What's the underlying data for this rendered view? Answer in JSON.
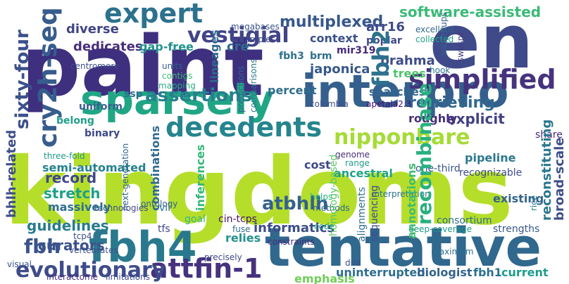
{
  "words": [
    {
      "text": "kingdoms",
      "color": "#b5de2b"
    },
    {
      "text": "paint",
      "color": "#3e2f7f"
    },
    {
      "text": "en",
      "color": "#3f4a8a"
    },
    {
      "text": "tentative",
      "color": "#30688e"
    },
    {
      "text": "interpro",
      "color": "#35608d"
    },
    {
      "text": "sparsely",
      "color": "#21a685"
    },
    {
      "text": "fbh4",
      "color": "#2a788e"
    },
    {
      "text": "decedents",
      "color": "#25858e"
    },
    {
      "text": "simplified",
      "color": "#46337e"
    },
    {
      "text": "expert",
      "color": "#2c728e"
    },
    {
      "text": "attfin-1",
      "color": "#46327e"
    },
    {
      "text": "cry2h-seq",
      "color": "#365d8d"
    },
    {
      "text": "nipponbare",
      "color": "#a5db36"
    },
    {
      "text": "vestigial",
      "color": "#414487"
    },
    {
      "text": "sixty-four",
      "color": "#3b518b"
    },
    {
      "text": "evolutionary",
      "color": "#3e4c8a"
    },
    {
      "text": "fbh2",
      "color": "#2d718e"
    },
    {
      "text": "recombinase",
      "color": "#2ab07f"
    },
    {
      "text": "assertions",
      "color": "#27808e"
    },
    {
      "text": "fbh",
      "color": "#3a538b"
    },
    {
      "text": "atbhlh",
      "color": "#34618d"
    },
    {
      "text": "multiplexed",
      "color": "#38588c"
    },
    {
      "text": "software-assisted",
      "color": "#3aba76"
    },
    {
      "text": "retrieving",
      "color": "#31688e"
    },
    {
      "text": "curators",
      "color": "#3b528b"
    },
    {
      "text": "guidelines",
      "color": "#287c8e"
    },
    {
      "text": "record",
      "color": "#3f4889"
    },
    {
      "text": "stretch",
      "color": "#1fa088"
    },
    {
      "text": "informatics",
      "color": "#3d4e8a"
    },
    {
      "text": "emphasis",
      "color": "#70cf57"
    },
    {
      "text": "uninterrupted",
      "color": "#2e6f8e"
    },
    {
      "text": "biologist",
      "color": "#33638d"
    },
    {
      "text": "fbh1",
      "color": "#2d718e"
    },
    {
      "text": "current",
      "color": "#1e9c89"
    },
    {
      "text": "explicit",
      "color": "#424086"
    },
    {
      "text": "reconstituting",
      "color": "#2a778e"
    },
    {
      "text": "broad-scale",
      "color": "#3d4e8a"
    },
    {
      "text": "diverse",
      "color": "#414487"
    },
    {
      "text": "dedicates",
      "color": "#472d7b"
    },
    {
      "text": "gap-free",
      "color": "#20928c"
    },
    {
      "text": "cre",
      "color": "#2f6c8e"
    },
    {
      "text": "context",
      "color": "#3c508b"
    },
    {
      "text": "arr16",
      "color": "#3e4a89"
    },
    {
      "text": "brahma",
      "color": "#3e4c8a"
    },
    {
      "text": "japonica",
      "color": "#38588c"
    },
    {
      "text": "fbh3",
      "color": "#2d718e"
    },
    {
      "text": "trees",
      "color": "#4ec36b"
    },
    {
      "text": "mir319",
      "color": "#472a7a"
    },
    {
      "text": "poplar",
      "color": "#3e4989"
    },
    {
      "text": "brm",
      "color": "#2e6e8e"
    },
    {
      "text": "excellent",
      "color": "#31668e"
    },
    {
      "text": "collected",
      "color": "#20a386"
    },
    {
      "text": "subgroups",
      "color": "#34618d"
    },
    {
      "text": "swi/snf",
      "color": "#44397f"
    },
    {
      "text": "examples",
      "color": "#3e4a89"
    },
    {
      "text": "megabases",
      "color": "#3b528b"
    },
    {
      "text": "hook",
      "color": "#2c738e"
    },
    {
      "text": "searches",
      "color": "#32658e"
    },
    {
      "text": "roughly",
      "color": "#472f7d"
    },
    {
      "text": "percent",
      "color": "#2e6e8e"
    },
    {
      "text": "columbia",
      "color": "#3e4c8a"
    },
    {
      "text": "apetala2.3",
      "color": "#440f76"
    },
    {
      "text": "annotations",
      "color": "#3fbc73"
    },
    {
      "text": "semi-automated",
      "color": "#26828e"
    },
    {
      "text": "three-fold",
      "color": "#1f998a"
    },
    {
      "text": "bhlh-related",
      "color": "#3d4e8a"
    },
    {
      "text": "uniform",
      "color": "#34608d"
    },
    {
      "text": "belong",
      "color": "#1f9e89"
    },
    {
      "text": "binary",
      "color": "#3e4989"
    },
    {
      "text": "ssp",
      "color": "#2d708e"
    },
    {
      "text": "centromere",
      "color": "#3d4e8a"
    },
    {
      "text": "units",
      "color": "#33638d"
    },
    {
      "text": "contigs",
      "color": "#3fbc73"
    },
    {
      "text": "mapping",
      "color": "#27ad81"
    },
    {
      "text": "lineages",
      "color": "#31688e"
    },
    {
      "text": "predictions",
      "color": "#32658e"
    },
    {
      "text": "comparisons",
      "color": "#2b758e"
    },
    {
      "text": "cost",
      "color": "#3f4889"
    },
    {
      "text": "genome",
      "color": "#472d7b"
    },
    {
      "text": "range",
      "color": "#1f9e89"
    },
    {
      "text": "ancestral",
      "color": "#20a386"
    },
    {
      "text": "one-third",
      "color": "#39568c"
    },
    {
      "text": "pipeline",
      "color": "#2a788e"
    },
    {
      "text": "recognizable",
      "color": "#3e4c8a"
    },
    {
      "text": "share",
      "color": "#482878"
    },
    {
      "text": "rice",
      "color": "#287c8e"
    },
    {
      "text": "next-generation",
      "color": "#31668e"
    },
    {
      "text": "technologies",
      "color": "#3e4a89"
    },
    {
      "text": "combinations",
      "color": "#2f6b8e"
    },
    {
      "text": "inferences",
      "color": "#35b779"
    },
    {
      "text": "massively",
      "color": "#2e6f8e"
    },
    {
      "text": "vii",
      "color": "#2c738e"
    },
    {
      "text": "goal",
      "color": "#32b67a"
    },
    {
      "text": "tfs",
      "color": "#404588"
    },
    {
      "text": "relies",
      "color": "#21918c"
    },
    {
      "text": "cin-tcps",
      "color": "#471164"
    },
    {
      "text": "fuse",
      "color": "#2d708e"
    },
    {
      "text": "constraints",
      "color": "#472c7a"
    },
    {
      "text": "helps",
      "color": "#2ab07f"
    },
    {
      "text": "methods",
      "color": "#32658e"
    },
    {
      "text": "code",
      "color": "#20a386"
    },
    {
      "text": "homology-based",
      "color": "#5ac864"
    },
    {
      "text": "interpretation",
      "color": "#2d718e"
    },
    {
      "text": "alignments",
      "color": "#2e6e8e"
    },
    {
      "text": "sequencing",
      "color": "#3e4c8a"
    },
    {
      "text": "dna",
      "color": "#3b528b"
    },
    {
      "text": "deep-coverage",
      "color": "#1f9a8a"
    },
    {
      "text": "consortium",
      "color": "#2d708e"
    },
    {
      "text": "strengths",
      "color": "#38588c"
    },
    {
      "text": "maximum",
      "color": "#2d718e"
    },
    {
      "text": "existing",
      "color": "#33638d"
    },
    {
      "text": "vertebrates",
      "color": "#3b528b"
    },
    {
      "text": "precisely",
      "color": "#3f4889"
    },
    {
      "text": "tcp4",
      "color": "#3d4e8a"
    },
    {
      "text": "visual",
      "color": "#3b528b"
    },
    {
      "text": "interactome",
      "color": "#472d7b"
    },
    {
      "text": "limitations",
      "color": "#3e4a89"
    },
    {
      "text": "ontology",
      "color": "#33638d"
    }
  ]
}
